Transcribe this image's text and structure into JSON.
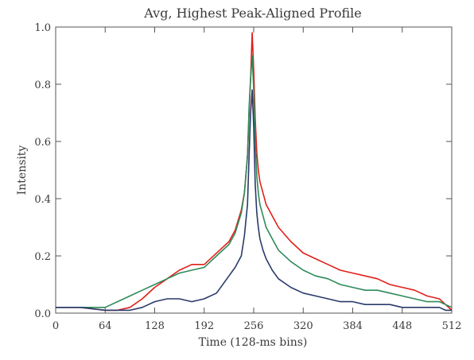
{
  "chart_data": {
    "type": "line",
    "title": "Avg, Highest Peak-Aligned Profile",
    "xlabel": "Time (128-ms bins)",
    "ylabel": "Intensity",
    "xlim": [
      0,
      512
    ],
    "ylim": [
      0,
      1.0
    ],
    "x_ticks": [
      0,
      64,
      128,
      192,
      256,
      320,
      384,
      448,
      512
    ],
    "x_tick_labels": [
      "0",
      "64",
      "128",
      "192",
      "256",
      "320",
      "384",
      "448",
      "512"
    ],
    "y_ticks": [
      0,
      0.2,
      0.4,
      0.6,
      0.8,
      1.0
    ],
    "y_tick_labels": [
      "0.0",
      "0.2",
      "0.4",
      "0.6",
      "0.8",
      "1.0"
    ],
    "grid": false,
    "series": [
      {
        "color": "#e0201a",
        "x": [
          0,
          32,
          64,
          80,
          96,
          112,
          128,
          144,
          160,
          176,
          192,
          208,
          224,
          232,
          240,
          244,
          248,
          250,
          252,
          254,
          256,
          258,
          260,
          262,
          264,
          268,
          272,
          280,
          288,
          304,
          320,
          336,
          352,
          368,
          384,
          400,
          416,
          432,
          448,
          464,
          480,
          496,
          504,
          512
        ],
        "values": [
          0.02,
          0.02,
          0.01,
          0.01,
          0.02,
          0.05,
          0.09,
          0.12,
          0.15,
          0.17,
          0.17,
          0.21,
          0.25,
          0.29,
          0.36,
          0.42,
          0.55,
          0.7,
          0.82,
          0.98,
          0.85,
          0.68,
          0.56,
          0.5,
          0.46,
          0.42,
          0.38,
          0.34,
          0.3,
          0.25,
          0.21,
          0.19,
          0.17,
          0.15,
          0.14,
          0.13,
          0.12,
          0.1,
          0.09,
          0.08,
          0.06,
          0.05,
          0.03,
          0.01
        ]
      },
      {
        "color": "#2e8a5a",
        "x": [
          0,
          32,
          64,
          80,
          96,
          112,
          128,
          144,
          160,
          176,
          192,
          208,
          224,
          232,
          240,
          244,
          248,
          250,
          252,
          254,
          256,
          258,
          260,
          262,
          264,
          268,
          272,
          280,
          288,
          304,
          320,
          336,
          352,
          368,
          384,
          400,
          416,
          432,
          448,
          464,
          480,
          496,
          504,
          512
        ],
        "values": [
          0.02,
          0.02,
          0.02,
          0.04,
          0.06,
          0.08,
          0.1,
          0.12,
          0.14,
          0.15,
          0.16,
          0.2,
          0.24,
          0.28,
          0.35,
          0.42,
          0.55,
          0.72,
          0.82,
          0.9,
          0.78,
          0.6,
          0.48,
          0.42,
          0.38,
          0.34,
          0.3,
          0.26,
          0.22,
          0.18,
          0.15,
          0.13,
          0.12,
          0.1,
          0.09,
          0.08,
          0.08,
          0.07,
          0.06,
          0.05,
          0.04,
          0.04,
          0.03,
          0.02
        ]
      },
      {
        "color": "#2a3a6a",
        "x": [
          0,
          32,
          64,
          80,
          96,
          112,
          128,
          144,
          160,
          176,
          192,
          208,
          224,
          232,
          240,
          244,
          248,
          250,
          252,
          254,
          256,
          258,
          260,
          262,
          264,
          268,
          272,
          280,
          288,
          304,
          320,
          336,
          352,
          368,
          384,
          400,
          416,
          432,
          448,
          464,
          480,
          496,
          504,
          512
        ],
        "values": [
          0.02,
          0.02,
          0.01,
          0.01,
          0.01,
          0.02,
          0.04,
          0.05,
          0.05,
          0.04,
          0.05,
          0.07,
          0.13,
          0.16,
          0.2,
          0.27,
          0.38,
          0.55,
          0.7,
          0.78,
          0.65,
          0.45,
          0.35,
          0.3,
          0.26,
          0.22,
          0.19,
          0.15,
          0.12,
          0.09,
          0.07,
          0.06,
          0.05,
          0.04,
          0.04,
          0.03,
          0.03,
          0.03,
          0.02,
          0.02,
          0.02,
          0.02,
          0.01,
          0.01
        ]
      }
    ]
  }
}
